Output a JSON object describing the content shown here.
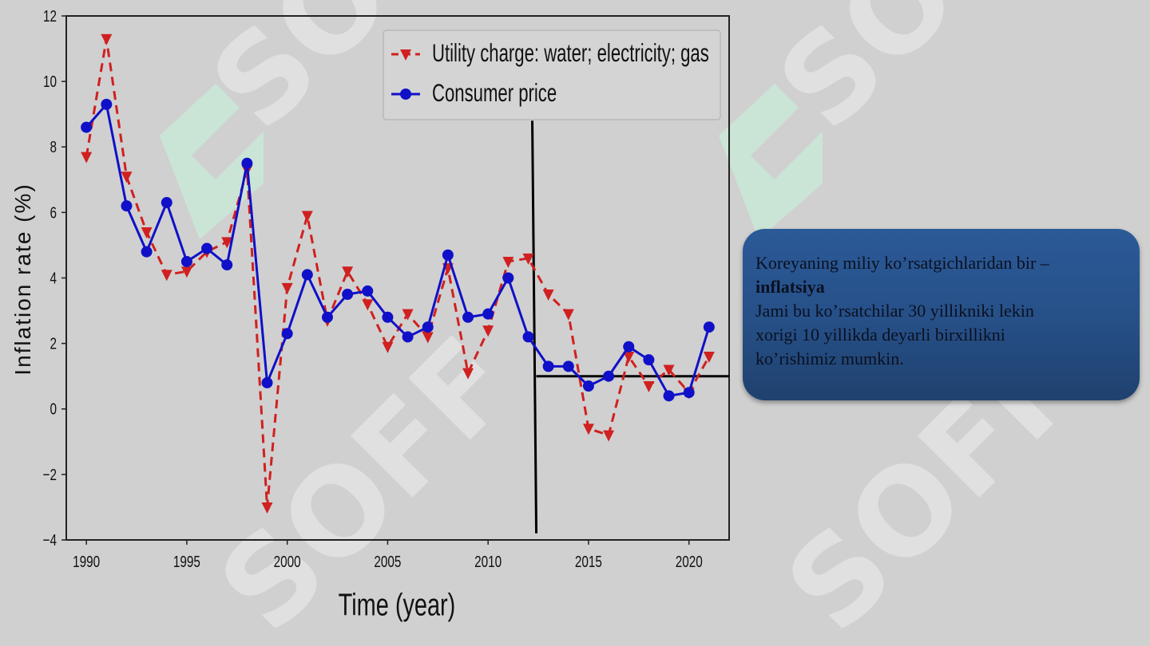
{
  "watermark": {
    "text": "SOFF",
    "color": "#ffffff",
    "logo_color": "#c8ecd8"
  },
  "info_box": {
    "line1": "Koreyaning miliy ko’rsatgichlaridan bir –",
    "line2": "inflatsiya",
    "line3": "Jami bu ko’rsatchilar 30 yillikniki lekin",
    "line4": "xorigi 10 yillikda deyarli birxillikni",
    "line5": "ko’rishimiz mumkin.",
    "background": "#2b5a98"
  },
  "chart_data": {
    "type": "line",
    "title": "",
    "xlabel": "Time (year)",
    "ylabel": "Inflation rate (%)",
    "xlim": [
      1989,
      2022
    ],
    "ylim": [
      -4,
      12
    ],
    "xticks": [
      1990,
      1995,
      2000,
      2005,
      2010,
      2015,
      2020
    ],
    "yticks": [
      -4,
      -2,
      0,
      2,
      4,
      6,
      8,
      10,
      12
    ],
    "x": [
      1990,
      1991,
      1992,
      1993,
      1994,
      1995,
      1996,
      1997,
      1998,
      1999,
      2000,
      2001,
      2002,
      2003,
      2004,
      2005,
      2006,
      2007,
      2008,
      2009,
      2010,
      2011,
      2012,
      2013,
      2014,
      2015,
      2016,
      2017,
      2018,
      2019,
      2020,
      2021
    ],
    "series": [
      {
        "name": "Utility charge: water; electricity; gas",
        "color": "#d02020",
        "style": "dashed",
        "marker": "triangle-down",
        "values": [
          7.7,
          11.3,
          7.1,
          5.4,
          4.1,
          4.2,
          4.8,
          5.1,
          7.3,
          -3.0,
          3.7,
          5.9,
          2.7,
          4.2,
          3.2,
          1.9,
          2.9,
          2.2,
          4.3,
          1.1,
          2.4,
          4.5,
          4.6,
          3.5,
          2.9,
          -0.6,
          -0.8,
          1.6,
          0.7,
          1.2,
          0.5,
          1.6
        ]
      },
      {
        "name": "Consumer price",
        "color": "#1010c8",
        "style": "solid",
        "marker": "circle",
        "values": [
          8.6,
          9.3,
          6.2,
          4.8,
          6.3,
          4.5,
          4.9,
          4.4,
          7.5,
          0.8,
          2.3,
          4.1,
          2.8,
          3.5,
          3.6,
          2.8,
          2.2,
          2.5,
          4.7,
          2.8,
          2.9,
          4.0,
          2.2,
          1.3,
          1.3,
          0.7,
          1.0,
          1.9,
          1.5,
          0.4,
          0.5,
          2.5
        ]
      }
    ],
    "legend": {
      "position": "top-right"
    },
    "annotations": [
      {
        "type": "line",
        "from": [
          2012.2,
          8.8
        ],
        "to": [
          2012.4,
          -3.8
        ],
        "color": "#000000"
      },
      {
        "type": "line",
        "from": [
          2012.4,
          1.0
        ],
        "to": [
          2022,
          1.0
        ],
        "color": "#000000"
      }
    ],
    "grid": false
  }
}
